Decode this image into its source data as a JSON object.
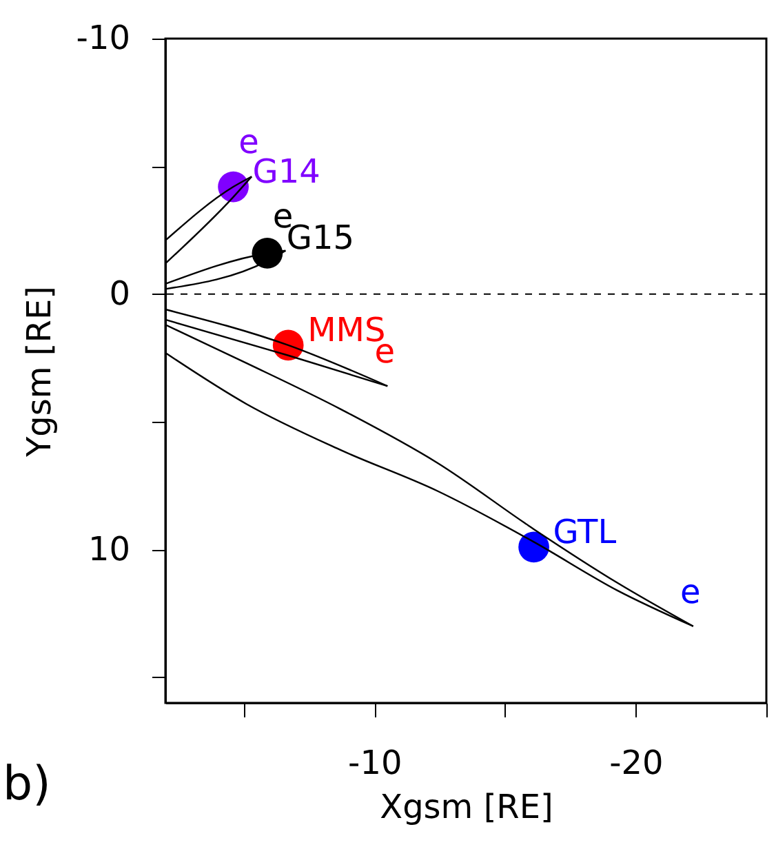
{
  "chart_data": {
    "type": "scatter",
    "xlabel": "Xgsm [RE]",
    "ylabel": "Ygsm [RE]",
    "xlim": [
      -2,
      -25
    ],
    "ylim": [
      16,
      -10
    ],
    "xticks": [
      {
        "value": -5,
        "label": null
      },
      -10,
      {
        "value": -15,
        "label": null
      },
      -20,
      {
        "value": -25,
        "label": null
      }
    ],
    "yticks": [
      -10,
      {
        "value": -5,
        "label": null
      },
      0,
      {
        "value": 5,
        "label": null
      },
      10,
      {
        "value": 15,
        "label": null
      }
    ],
    "grid": false,
    "marker": "circle",
    "ref_lines": [
      {
        "axis": "y",
        "value": 0,
        "label": null,
        "color": "#000000",
        "line_style": "dashed"
      }
    ],
    "series": [
      {
        "name": "G14",
        "color": "#8000ff",
        "x": [
          -4.6
        ],
        "values": [
          -4.2
        ]
      },
      {
        "name": "G15",
        "color": "#000000",
        "x": [
          -5.9
        ],
        "values": [
          -1.6
        ]
      },
      {
        "name": "MMS",
        "color": "#ff0000",
        "x": [
          -6.7
        ],
        "values": [
          2.0
        ]
      },
      {
        "name": "GTL",
        "color": "#0000ff",
        "x": [
          -16.1
        ],
        "values": [
          9.9
        ]
      },
      {
        "type": "line",
        "color": "#000000",
        "marker": "none",
        "x": [
          -2,
          -4.6,
          -5.3
        ],
        "values": [
          -2.1,
          -4.2,
          -4.6
        ]
      },
      {
        "type": "line",
        "color": "#000000",
        "marker": "none",
        "x": [
          -2,
          -4.6,
          -5.3
        ],
        "values": [
          -1.2,
          -3.8,
          -4.6
        ]
      },
      {
        "type": "line",
        "color": "#000000",
        "marker": "none",
        "x": [
          -2,
          -5.9,
          -6.6
        ],
        "values": [
          -0.4,
          -1.6,
          -1.7
        ]
      },
      {
        "type": "line",
        "color": "#000000",
        "marker": "none",
        "x": [
          -2,
          -5.9,
          -6.6
        ],
        "values": [
          -0.2,
          -1.3,
          -1.7
        ]
      },
      {
        "type": "line",
        "color": "#000000",
        "marker": "none",
        "x": [
          -2,
          -6.7,
          -10.5
        ],
        "values": [
          0.6,
          2.0,
          3.6
        ]
      },
      {
        "type": "line",
        "color": "#000000",
        "marker": "none",
        "x": [
          -2,
          -6.7,
          -10.5
        ],
        "values": [
          1.0,
          2.4,
          3.6
        ]
      },
      {
        "type": "line",
        "color": "#000000",
        "marker": "none",
        "x": [
          -2,
          -5.1,
          -8.7,
          -12.4,
          -16.1,
          -19.3,
          -22.2
        ],
        "values": [
          1.2,
          2.7,
          4.5,
          6.6,
          9.2,
          11.3,
          13.0
        ]
      },
      {
        "type": "line",
        "color": "#000000",
        "marker": "none",
        "x": [
          -2,
          -5.1,
          -8.7,
          -12.4,
          -16.1,
          -19.3,
          -22.2
        ],
        "values": [
          2.3,
          4.3,
          6.1,
          7.7,
          9.7,
          11.6,
          13.0
        ]
      }
    ],
    "annotations": [
      {
        "text": "e",
        "x": -5.3,
        "y": -4.6
      },
      {
        "text": "e",
        "x": -6.6,
        "y": -1.7
      },
      {
        "text": "e",
        "x": -10.5,
        "y": 3.6
      },
      {
        "text": "e",
        "x": -22.2,
        "y": 13.0
      },
      "b)"
    ]
  }
}
